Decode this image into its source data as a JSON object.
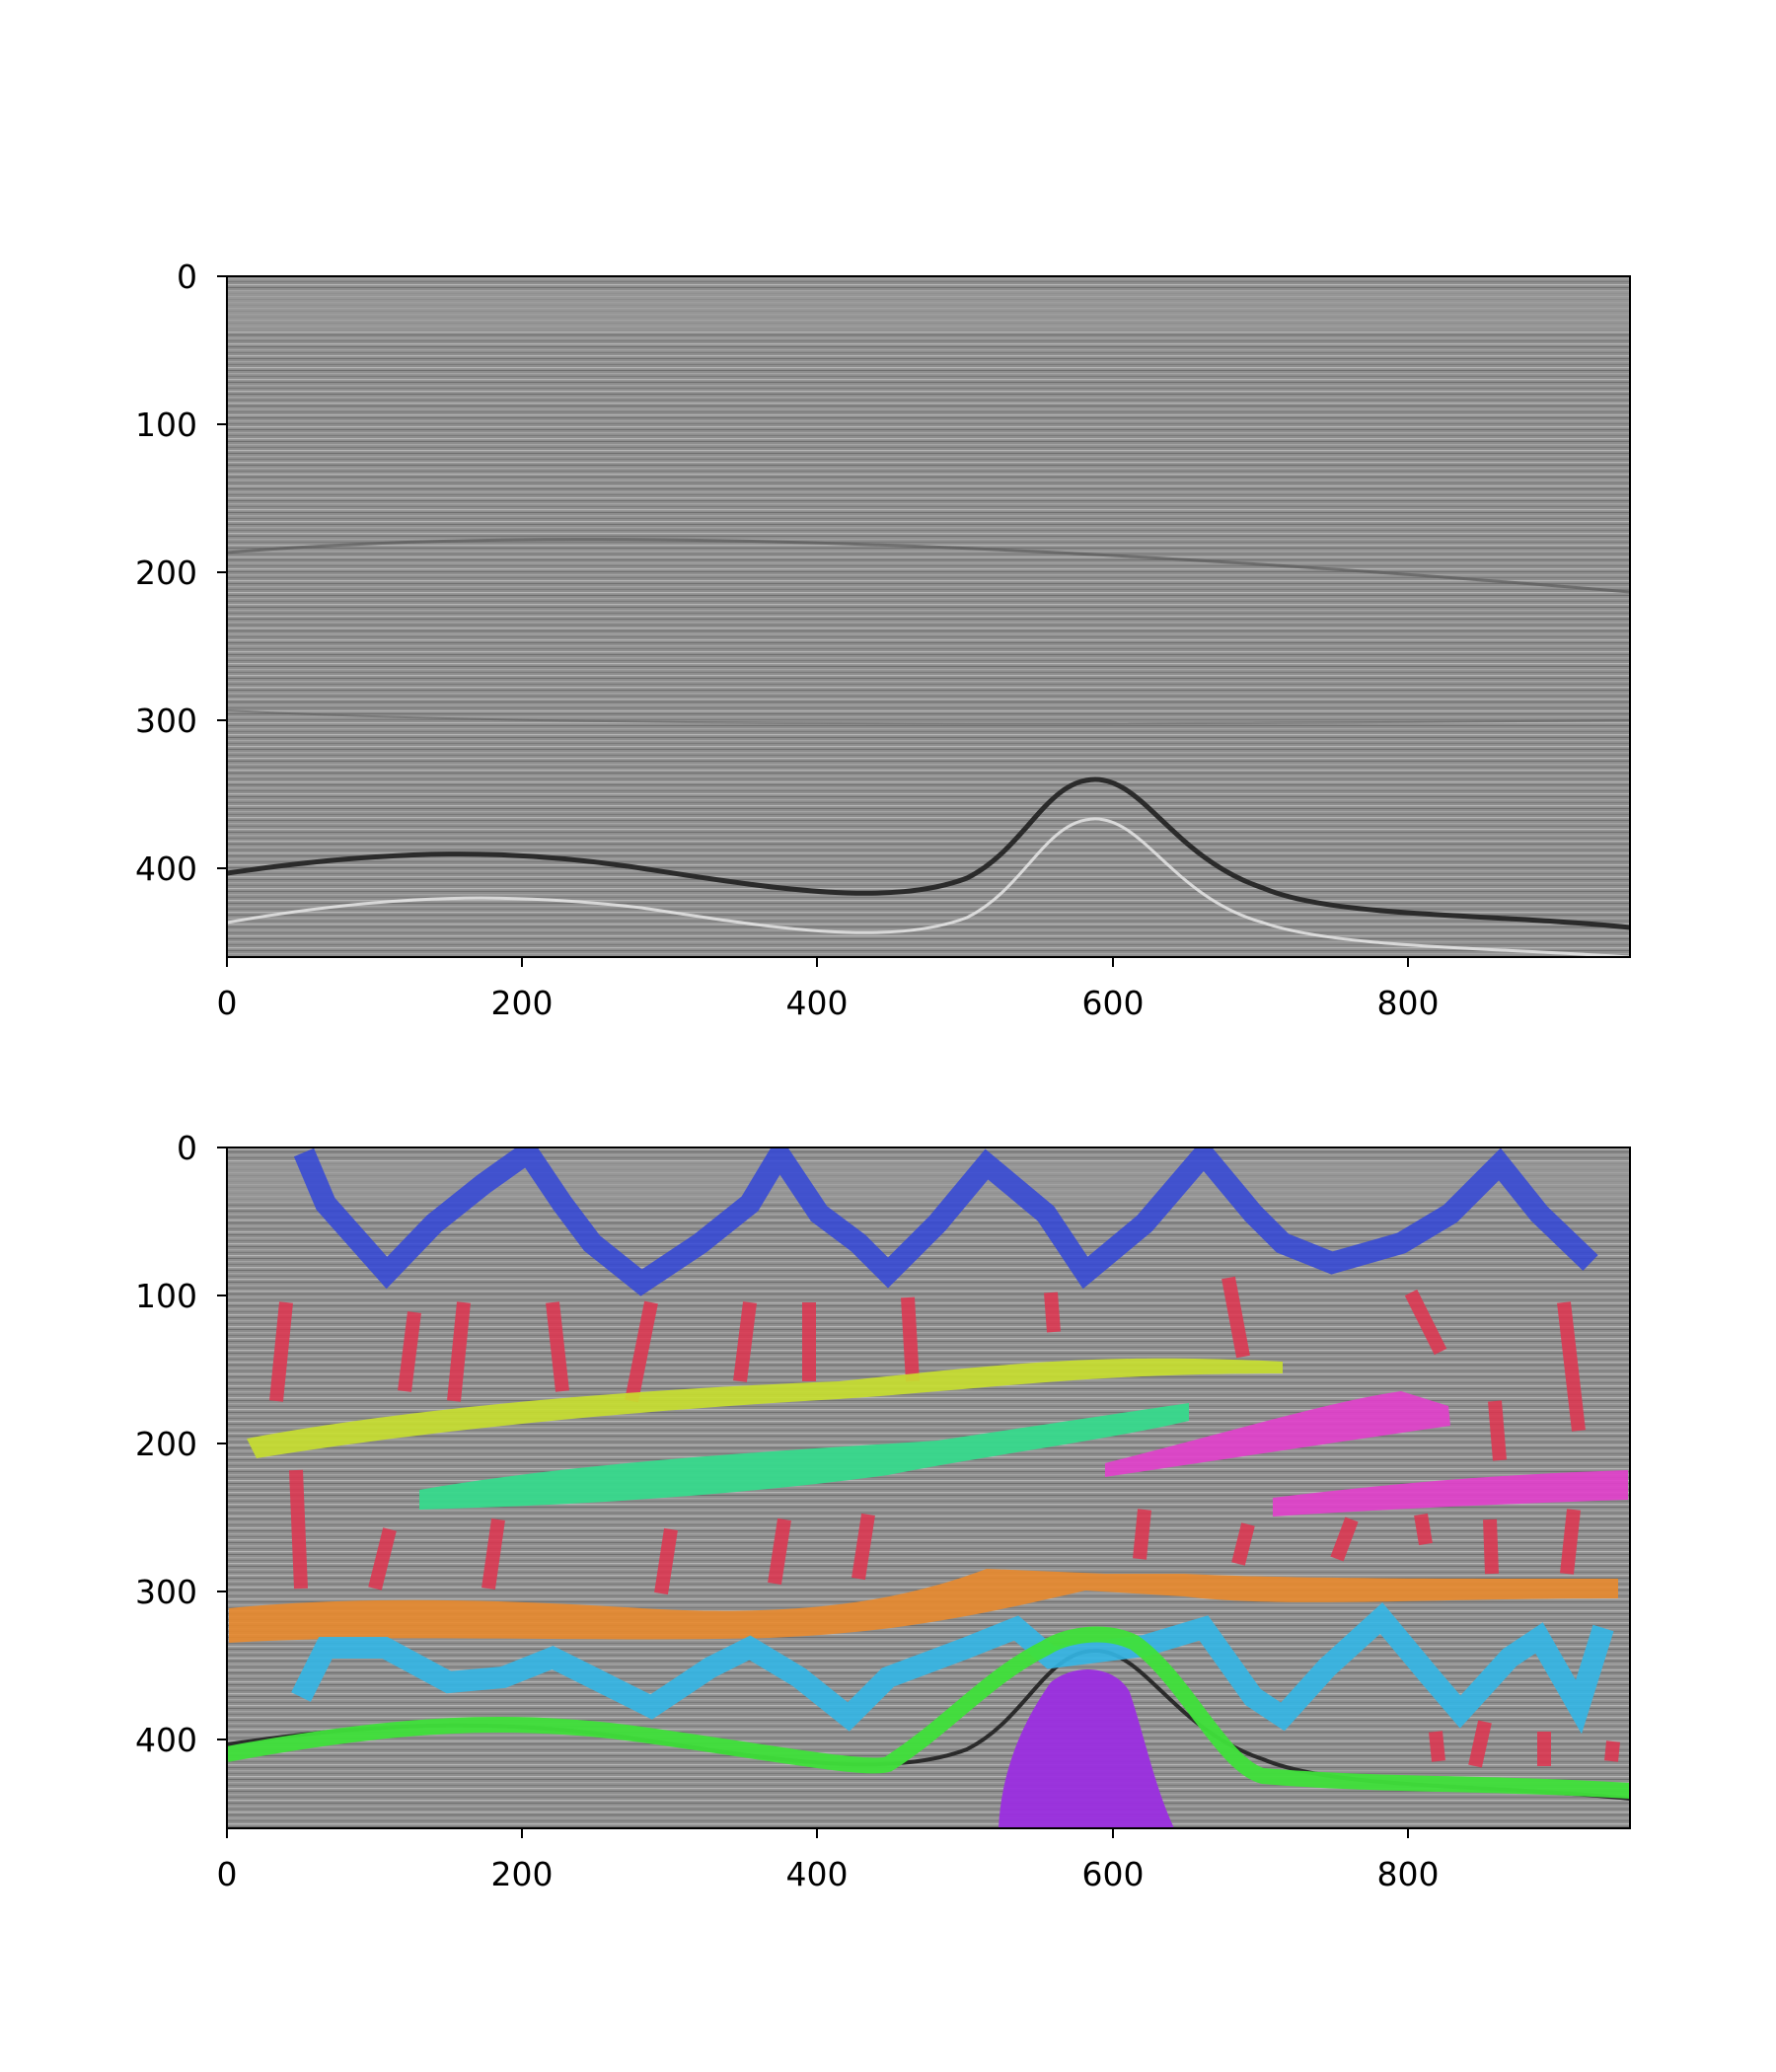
{
  "figure": {
    "background": "#ffffff",
    "panels": [
      {
        "id": "seismic-section",
        "x_ticks": [
          "0",
          "200",
          "400",
          "600",
          "800"
        ],
        "y_ticks": [
          "0",
          "100",
          "200",
          "300",
          "400"
        ],
        "x_range": [
          0,
          950
        ],
        "y_range": [
          0,
          460
        ],
        "y_inverted": true,
        "image": "grayscale seismic amplitude section"
      },
      {
        "id": "interpreted-section",
        "x_ticks": [
          "0",
          "200",
          "400",
          "600",
          "800"
        ],
        "y_ticks": [
          "0",
          "100",
          "200",
          "300",
          "400"
        ],
        "x_range": [
          0,
          950
        ],
        "y_range": [
          0,
          460
        ],
        "y_inverted": true,
        "image": "seismic section with colored facies annotations",
        "annotation_colors": {
          "zigzag-blue": "#3346d8",
          "red-dashes": "#e0344f",
          "yellow-band": "#c8df2e",
          "teal-band": "#37d98c",
          "magenta-band": "#e23fcc",
          "orange-band": "#e88a2e",
          "cyan-zigzag": "#33b6e6",
          "green-horizon": "#3fe03a",
          "purple-body": "#9b2ee0"
        }
      }
    ]
  }
}
